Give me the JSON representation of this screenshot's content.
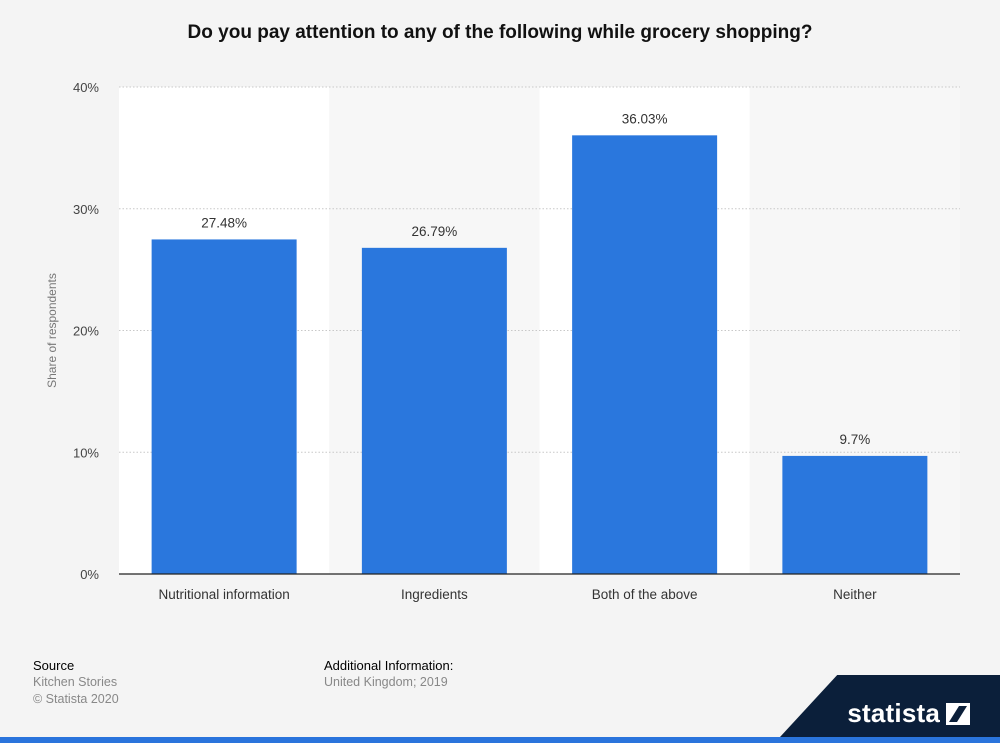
{
  "title": "Do you pay attention to any of the following while grocery shopping?",
  "chart_data": {
    "type": "bar",
    "title": "Do you pay attention to any of the following while grocery shopping?",
    "xlabel": "",
    "ylabel": "Share of respondents",
    "categories": [
      "Nutritional information",
      "Ingredients",
      "Both of the above",
      "Neither"
    ],
    "values": [
      27.48,
      26.79,
      36.03,
      9.7
    ],
    "data_labels": [
      "27.48%",
      "26.79%",
      "36.03%",
      "9.7%"
    ],
    "ylim": [
      0,
      40
    ],
    "yticks": [
      0,
      10,
      20,
      30,
      40
    ],
    "ytick_labels": [
      "0%",
      "10%",
      "20%",
      "30%",
      "40%"
    ],
    "grid": true,
    "bar_color": "#2a77dd"
  },
  "footer": {
    "source_heading": "Source",
    "source_lines": [
      "Kitchen Stories",
      "© Statista 2020"
    ],
    "info_heading": "Additional Information:",
    "info_text": "United Kingdom; 2019"
  },
  "brand": {
    "name": "statista",
    "icon": "statista-logo-icon"
  }
}
